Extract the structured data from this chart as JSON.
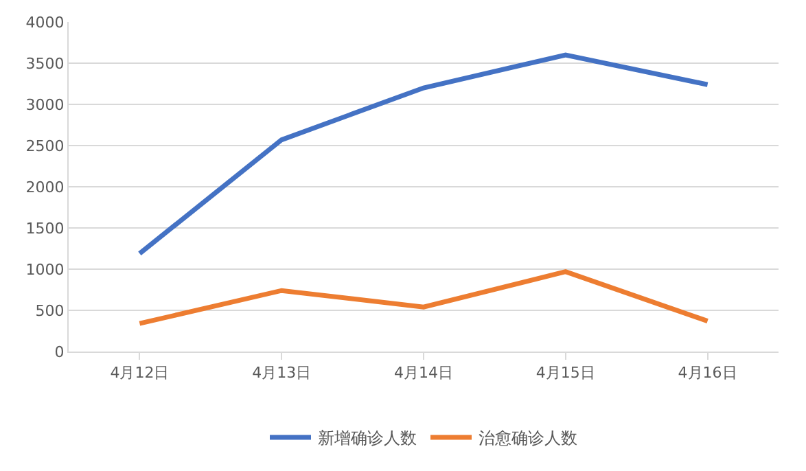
{
  "chart_data": {
    "type": "line",
    "categories": [
      "4月12日",
      "4月13日",
      "4月14日",
      "4月15日",
      "4月16日"
    ],
    "series": [
      {
        "name": "新增确诊人数",
        "color": "#4472c4",
        "values": [
          1190,
          2570,
          3200,
          3600,
          3240
        ]
      },
      {
        "name": "治愈确诊人数",
        "color": "#ed7d31",
        "values": [
          340,
          740,
          540,
          970,
          370
        ]
      }
    ],
    "ylim": [
      0,
      4000
    ],
    "yticks": [
      0,
      500,
      1000,
      1500,
      2000,
      2500,
      3000,
      3500,
      4000
    ],
    "grid": "y",
    "legend": "bottom",
    "marker": "none",
    "line_style": "solid"
  }
}
